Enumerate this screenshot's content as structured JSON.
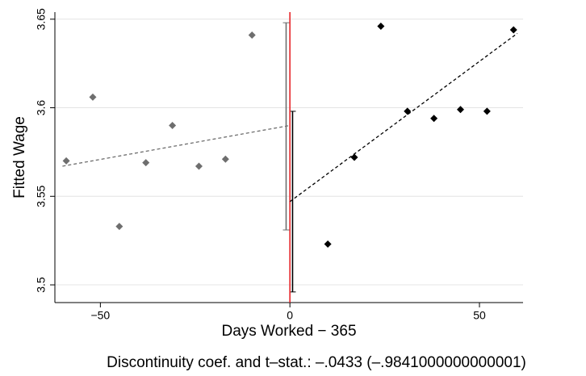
{
  "chart_data": {
    "type": "rd-scatter",
    "x_label": "Days Worked − 365",
    "y_label": "Fitted Wage",
    "note": "Discontinuity coef. and t–stat.: –.0433 (–.9841000000000001)",
    "xlim": [
      -62,
      61.5
    ],
    "ylim": [
      3.49,
      3.654
    ],
    "xticks": [
      {
        "value": -50,
        "label": "−50"
      },
      0,
      50
    ],
    "yticks": [
      3.5,
      3.55,
      3.6,
      3.65
    ],
    "grid": true,
    "cutoff": 0,
    "cutoff_color": "#e8262a",
    "series": [
      {
        "color": "#6e6e6e",
        "x": [
          -59,
          -52,
          -45,
          -38,
          -31,
          -24,
          -17,
          -10
        ],
        "values": [
          3.57,
          3.606,
          3.533,
          3.569,
          3.59,
          3.567,
          3.571,
          3.641
        ]
      },
      {
        "color": "#000000",
        "x": [
          10,
          17,
          24,
          31,
          38,
          45,
          52,
          59
        ],
        "values": [
          3.523,
          3.572,
          3.646,
          3.598,
          3.594,
          3.599,
          3.598,
          3.644
        ]
      }
    ],
    "fits": [
      {
        "color": "#6e6e6e",
        "x": [
          -60,
          0
        ],
        "values": [
          3.567,
          3.59
        ]
      },
      {
        "color": "#000000",
        "x": [
          0,
          60
        ],
        "values": [
          3.547,
          3.642
        ]
      }
    ],
    "intervals": [
      {
        "color": "#6e6e6e",
        "x": -1,
        "low": 3.531,
        "high": 3.648
      },
      {
        "color": "#000000",
        "x": 0.7,
        "low": 3.496,
        "high": 3.598
      }
    ]
  }
}
